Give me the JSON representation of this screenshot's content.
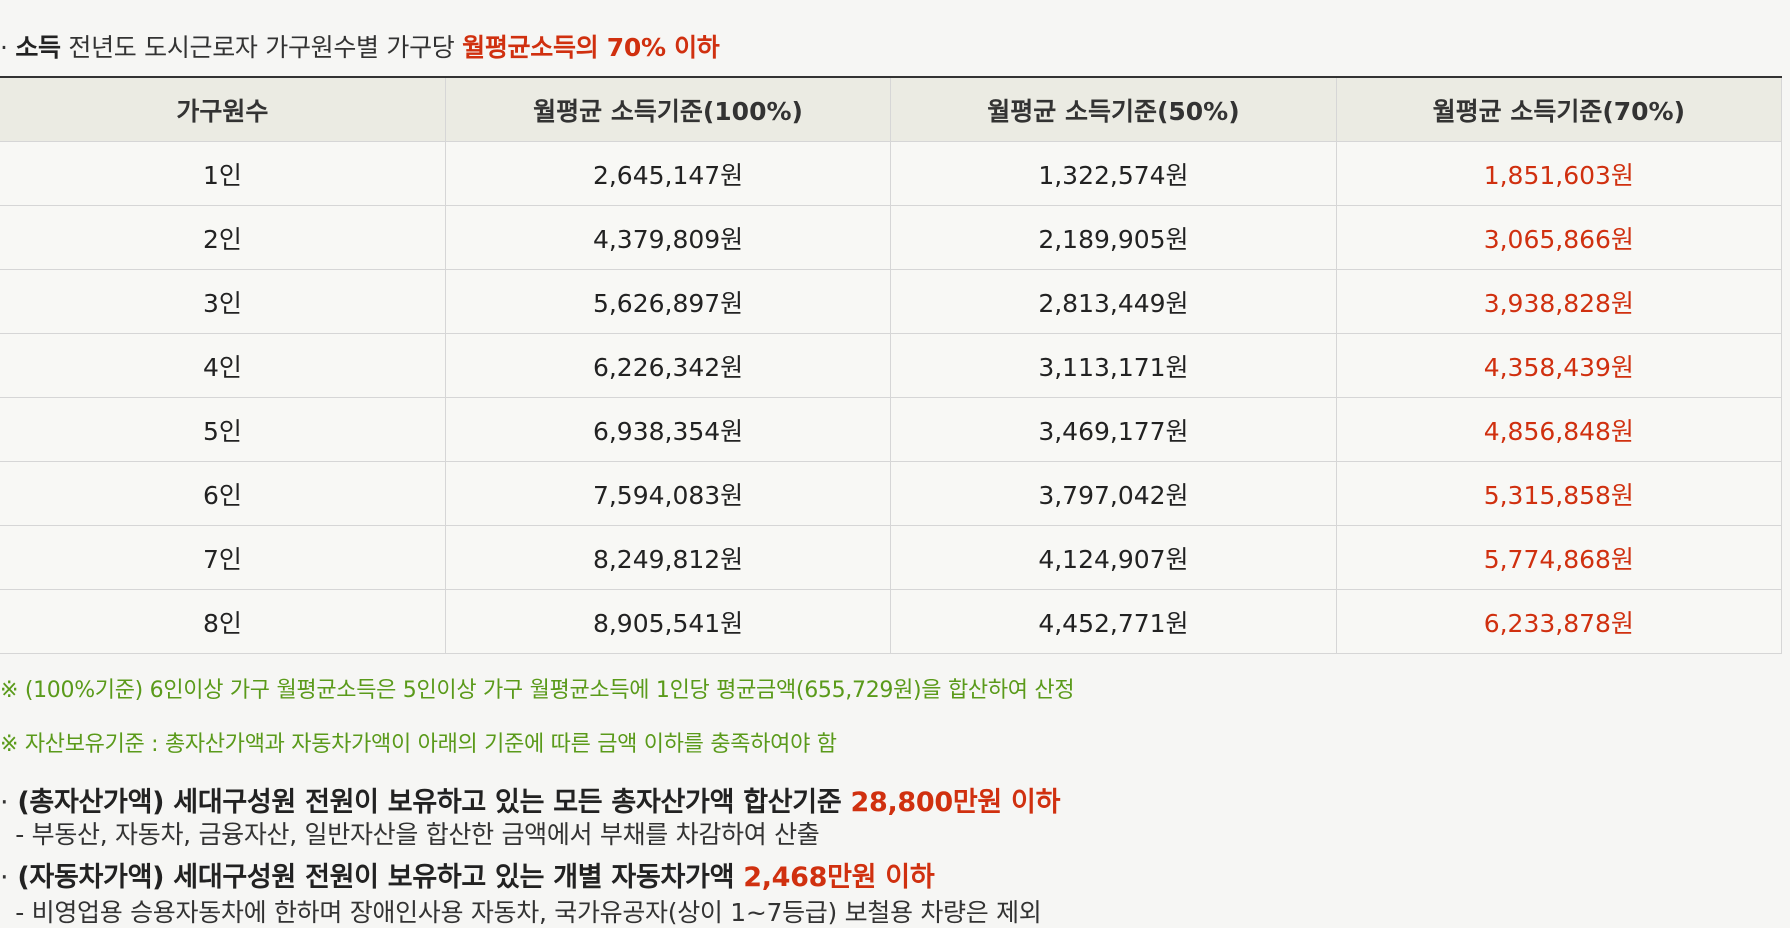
{
  "income": {
    "bullet": "·",
    "label": "소득",
    "text": " 전년도 도시근로자 가구원수별 가구당 ",
    "highlight": "월평균소득의 70% 이하"
  },
  "table": {
    "headers": [
      "가구원수",
      "월평균 소득기준(100%)",
      "월평균 소득기준(50%)",
      "월평균 소득기준(70%)"
    ],
    "rows": [
      [
        "1인",
        "2,645,147원",
        "1,322,574원",
        "1,851,603원"
      ],
      [
        "2인",
        "4,379,809원",
        "2,189,905원",
        "3,065,866원"
      ],
      [
        "3인",
        "5,626,897원",
        "2,813,449원",
        "3,938,828원"
      ],
      [
        "4인",
        "6,226,342원",
        "3,113,171원",
        "4,358,439원"
      ],
      [
        "5인",
        "6,938,354원",
        "3,469,177원",
        "4,856,848원"
      ],
      [
        "6인",
        "7,594,083원",
        "3,797,042원",
        "5,315,858원"
      ],
      [
        "7인",
        "8,249,812원",
        "4,124,907원",
        "5,774,868원"
      ],
      [
        "8인",
        "8,905,541원",
        "4,452,771원",
        "6,233,878원"
      ]
    ]
  },
  "notes": {
    "note1": "※ (100%기준) 6인이상 가구 월평균소득은 5인이상 가구 월평균소득에 1인당 평균금액(655,729원)을 합산하여 산정",
    "note2": "※ 자산보유기준 : 총자산가액과 자동차가액이 아래의 기준에 따른 금액 이하를 충족하여야 함"
  },
  "asset": {
    "bullet": "·",
    "text": " (총자산가액) 세대구성원 전원이 보유하고 있는 모든 총자산가액 합산기준 ",
    "highlight": "28,800만원 이하",
    "sub": "  - 부동산, 자동차, 금융자산, 일반자산을 합산한 금액에서 부채를 차감하여 산출"
  },
  "car": {
    "bullet": "·",
    "text": " (자동차가액) 세대구성원 전원이 보유하고 있는 개별 자동차가액 ",
    "highlight": "2,468만원 이하",
    "sub": "  - 비영업용 승용자동차에 한하며 장애인사용 자동차, 국가유공자(상이 1~7등급) 보철용 차량은 제외"
  },
  "colors": {
    "highlight": "#d0300f",
    "note": "#5a9a1a",
    "header_bg": "#ebebe3",
    "row_bg": "#f8f8f5"
  }
}
